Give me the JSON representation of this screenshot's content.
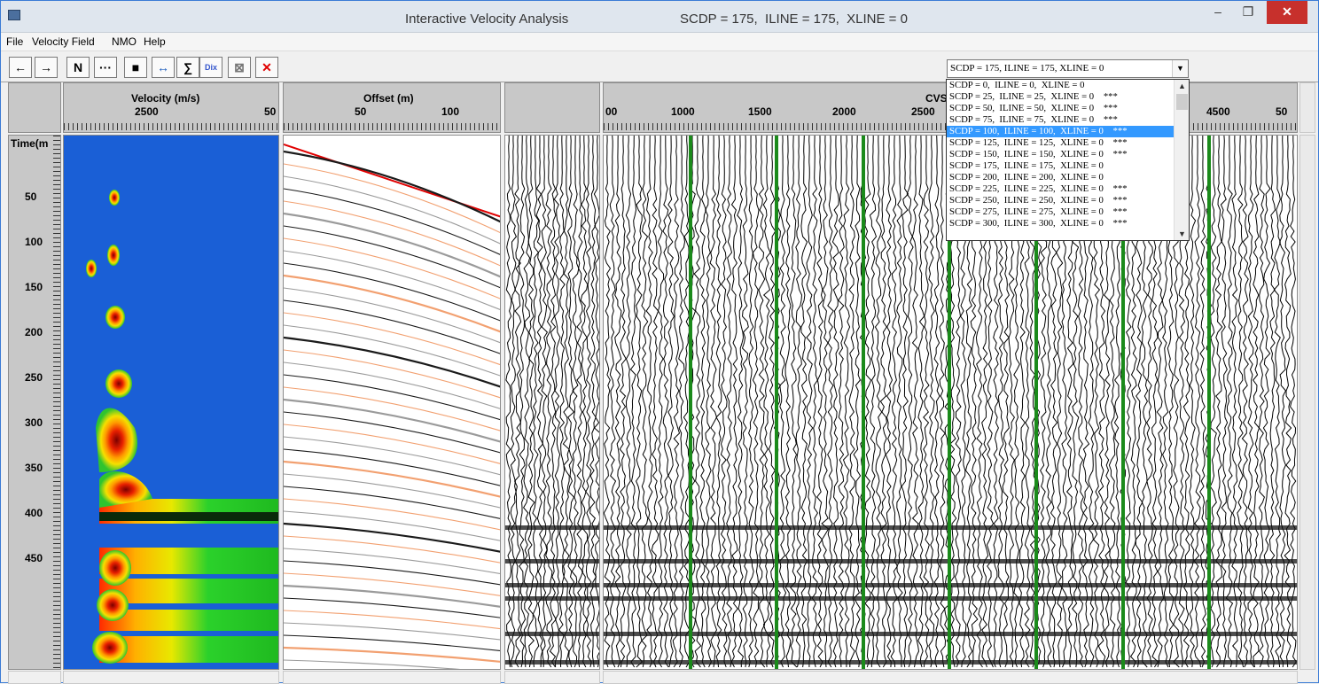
{
  "window": {
    "title": "Interactive Velocity Analysis",
    "location": "SCDP = 175,  ILINE = 175,  XLINE = 0",
    "controls": {
      "minimize": "–",
      "maximize": "❐",
      "close": "✕"
    }
  },
  "menu": [
    "File",
    "Velocity Field",
    "NMO",
    "Help"
  ],
  "toolbar": {
    "buttons": [
      {
        "name": "prev-button",
        "glyph": "←"
      },
      {
        "name": "next-button",
        "glyph": "→"
      },
      {
        "name": "n-button",
        "glyph": "N"
      },
      {
        "name": "more-button",
        "glyph": "···"
      },
      {
        "name": "save-button",
        "glyph": "■"
      },
      {
        "name": "pick-button",
        "glyph": "↔"
      },
      {
        "name": "sum-button",
        "glyph": "∑"
      },
      {
        "name": "dix-button",
        "glyph": "Dix"
      },
      {
        "name": "clear-button",
        "glyph": "⊠"
      },
      {
        "name": "delete-button",
        "glyph": "✕"
      }
    ],
    "selected_location": "SCDP = 175,  ILINE = 175,  XLINE = 0"
  },
  "dropdown_options": [
    "SCDP = 0,  ILINE = 0,  XLINE = 0",
    "SCDP = 25,  ILINE = 25,  XLINE = 0    ***",
    "SCDP = 50,  ILINE = 50,  XLINE = 0    ***",
    "SCDP = 75,  ILINE = 75,  XLINE = 0    ***",
    "SCDP = 100,  ILINE = 100,  XLINE = 0    ***",
    "SCDP = 125,  ILINE = 125,  XLINE = 0    ***",
    "SCDP = 150,  ILINE = 150,  XLINE = 0    ***",
    "SCDP = 175,  ILINE = 175,  XLINE = 0",
    "SCDP = 200,  ILINE = 200,  XLINE = 0",
    "SCDP = 225,  ILINE = 225,  XLINE = 0    ***",
    "SCDP = 250,  ILINE = 250,  XLINE = 0    ***",
    "SCDP = 275,  ILINE = 275,  XLINE = 0    ***",
    "SCDP = 300,  ILINE = 300,  XLINE = 0    ***"
  ],
  "dropdown_highlighted_index": 4,
  "panels": {
    "velocity": {
      "label": "Velocity (m/s)",
      "ticks": [
        "2500",
        "50"
      ]
    },
    "offset": {
      "label": "Offset (m)",
      "ticks": [
        "50",
        "100"
      ]
    },
    "cvs": {
      "label": "CVS",
      "ticks": [
        "00",
        "1000",
        "1500",
        "2000",
        "2500",
        "4500",
        "50"
      ]
    }
  },
  "time_axis": {
    "label": "Time(m",
    "ticks": [
      "50",
      "100",
      "150",
      "200",
      "250",
      "300",
      "350",
      "400",
      "450"
    ]
  },
  "colors": {
    "semblance_bg": "#1a5fd6",
    "cvs_line": "#1b8a1b",
    "pick_line": "#e00000",
    "selection": "#3399ff"
  }
}
